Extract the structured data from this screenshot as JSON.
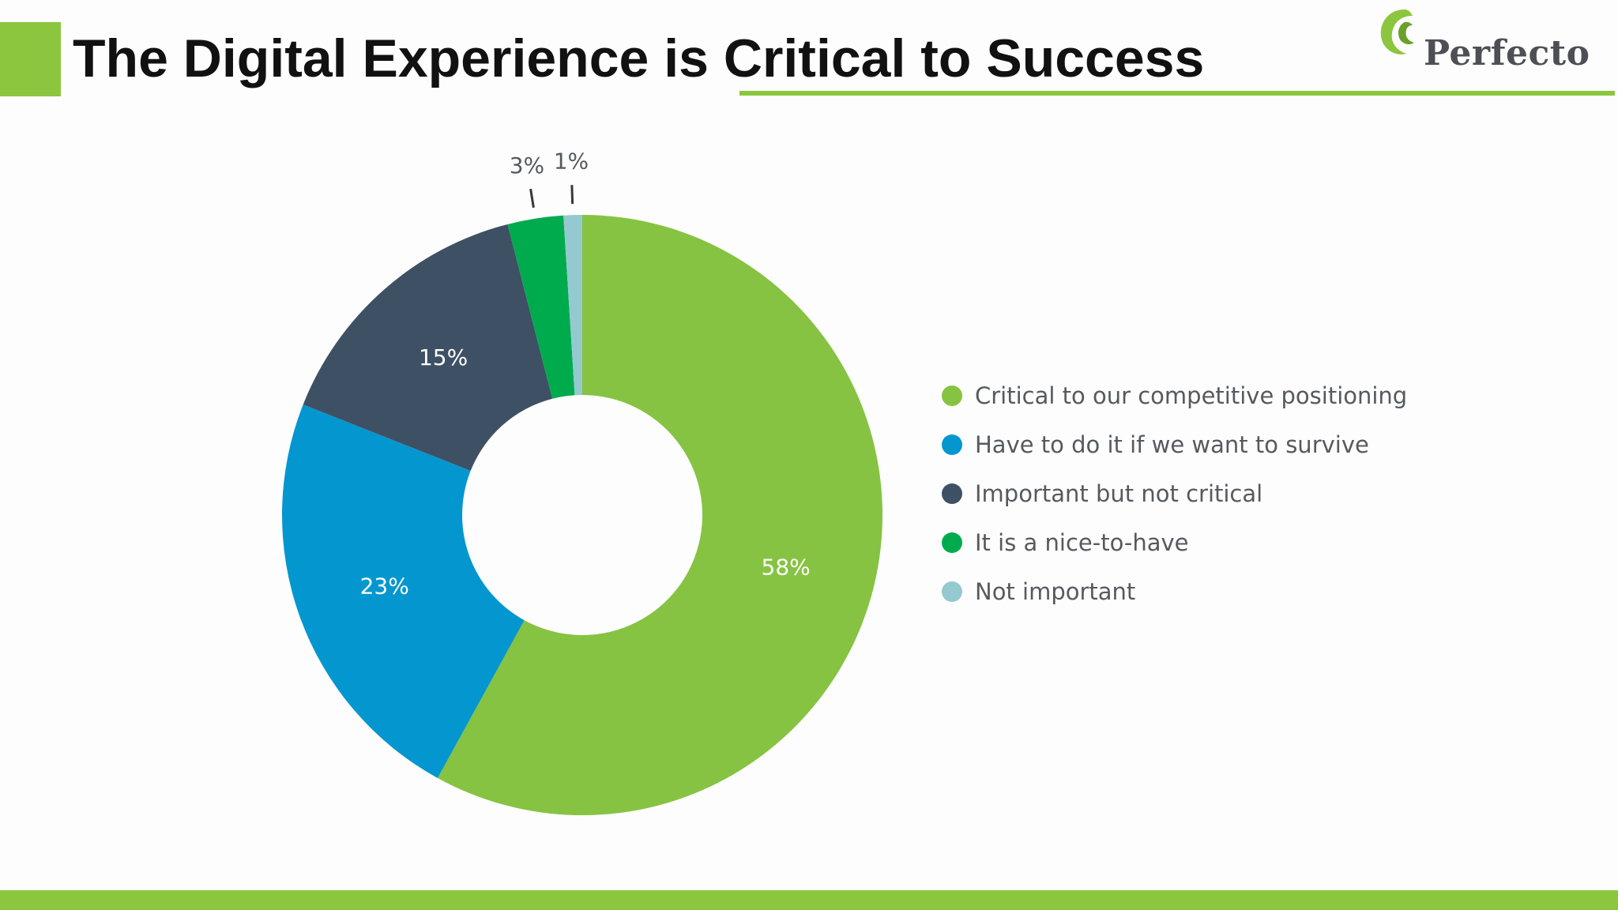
{
  "slide": {
    "title": "The Digital Experience is Critical to Success",
    "accent_color": "#8cc63f"
  },
  "logo": {
    "text": "Perfecto",
    "icon": "leaf-swirl-icon"
  },
  "chart_data": {
    "type": "pie",
    "donut": true,
    "title": "",
    "legend_position": "right",
    "categories": [
      "Critical to our competitive positioning",
      "Have to do it if we want to survive",
      "Important but not critical",
      "It is a nice-to-have",
      "Not important"
    ],
    "values": [
      58,
      23,
      15,
      3,
      1
    ],
    "data_labels": [
      "58%",
      "23%",
      "15%",
      "3%",
      "1%"
    ],
    "colors": [
      "#86c342",
      "#0497cf",
      "#3e5064",
      "#00ab4e",
      "#94c9cf"
    ]
  }
}
